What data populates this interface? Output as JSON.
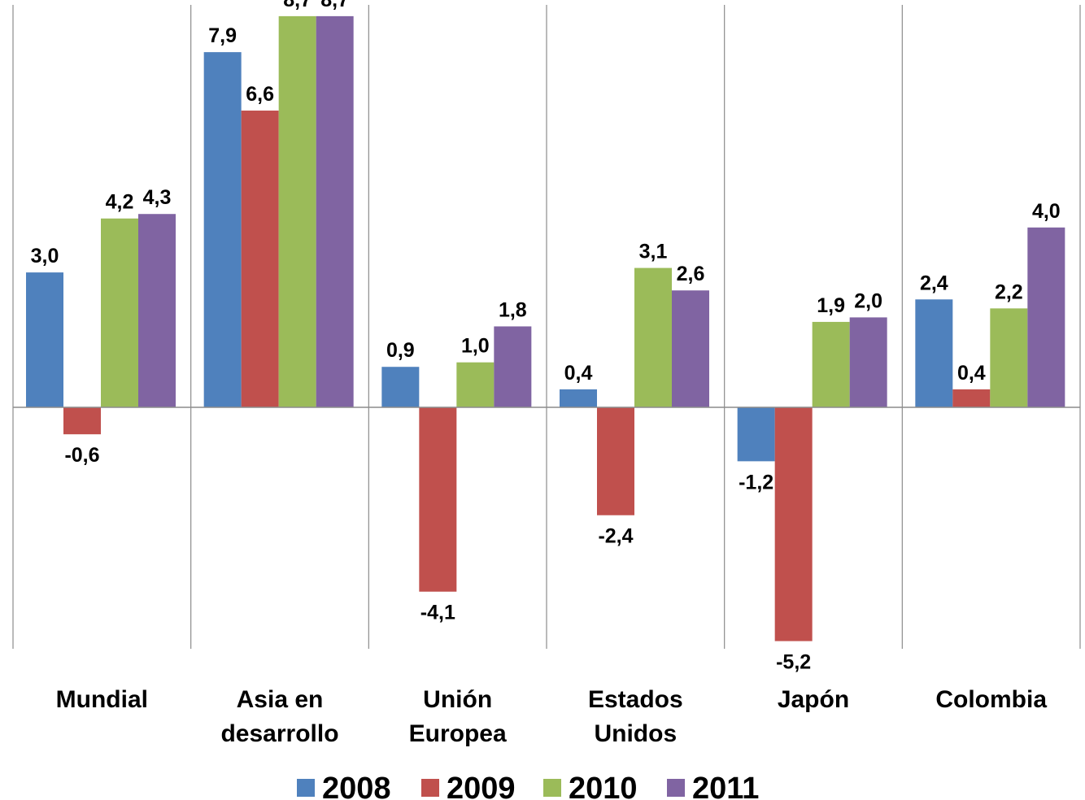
{
  "chart_data": {
    "type": "bar",
    "categories": [
      [
        "Mundial"
      ],
      [
        "Asia en",
        "desarrollo"
      ],
      [
        "Unión",
        "Europea"
      ],
      [
        "Estados",
        "Unidos"
      ],
      [
        "Japón"
      ],
      [
        "Colombia"
      ]
    ],
    "series": [
      {
        "name": "2008",
        "color": "#4F81BD",
        "values": [
          3.0,
          7.9,
          0.9,
          0.4,
          -1.2,
          2.4
        ]
      },
      {
        "name": "2009",
        "color": "#C0504D",
        "values": [
          -0.6,
          6.6,
          -4.1,
          -2.4,
          -5.2,
          0.4
        ]
      },
      {
        "name": "2010",
        "color": "#9BBB59",
        "values": [
          4.2,
          8.7,
          1.0,
          3.1,
          1.9,
          2.2
        ]
      },
      {
        "name": "2011",
        "color": "#8064A2",
        "values": [
          4.3,
          8.7,
          1.8,
          2.6,
          2.0,
          4.0
        ]
      }
    ],
    "ylim": [
      -6.0,
      10.0
    ],
    "decimal_separator": ",",
    "grid": false,
    "legend_position": "bottom",
    "title": "",
    "xlabel": "",
    "ylabel": ""
  }
}
